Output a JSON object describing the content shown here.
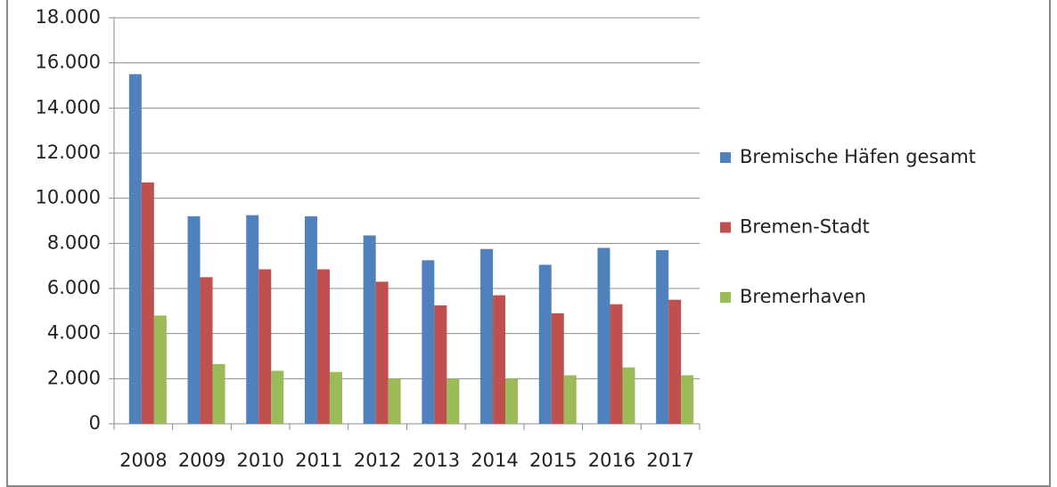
{
  "chart_data": {
    "type": "bar",
    "categories": [
      "2008",
      "2009",
      "2010",
      "2011",
      "2012",
      "2013",
      "2014",
      "2015",
      "2016",
      "2017"
    ],
    "series": [
      {
        "name": "Bremische Häfen gesamt",
        "color": "#4f81bd",
        "values": [
          15500,
          9200,
          9250,
          9200,
          8350,
          7250,
          7750,
          7050,
          7800,
          7700
        ]
      },
      {
        "name": "Bremen-Stadt",
        "color": "#c0504d",
        "values": [
          10700,
          6500,
          6850,
          6850,
          6300,
          5250,
          5700,
          4900,
          5300,
          5500
        ]
      },
      {
        "name": "Bremerhaven",
        "color": "#9bbb59",
        "values": [
          4800,
          2650,
          2350,
          2300,
          2000,
          2000,
          2000,
          2150,
          2500,
          2150
        ]
      }
    ],
    "ylim": [
      0,
      18000
    ],
    "yticks": [
      0,
      {
        "value": 2000,
        "label": "2.000"
      },
      {
        "value": 4000,
        "label": "4.000"
      },
      {
        "value": 6000,
        "label": "6.000"
      },
      {
        "value": 8000,
        "label": "8.000"
      },
      {
        "value": 10000,
        "label": "10.000"
      },
      {
        "value": 12000,
        "label": "12.000"
      },
      {
        "value": 14000,
        "label": "14.000"
      },
      {
        "value": 16000,
        "label": "16.000"
      },
      {
        "value": 18000,
        "label": "18.000"
      }
    ],
    "grid": true,
    "legend": "right"
  }
}
